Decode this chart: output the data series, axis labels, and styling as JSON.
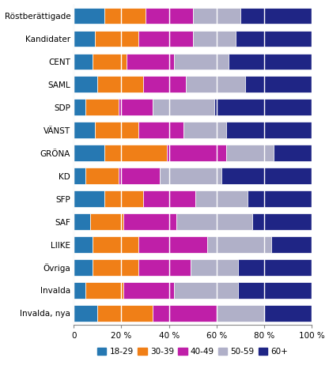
{
  "categories": [
    "Röstberättigade",
    "Kandidater",
    "CENT",
    "SAML",
    "SDP",
    "VÄNST",
    "GRÖNA",
    "KD",
    "SFP",
    "SAF",
    "LIIKE",
    "Övriga",
    "Invalda",
    "Invalda, nya"
  ],
  "segments": {
    "18-29": [
      13,
      9,
      8,
      10,
      5,
      9,
      13,
      5,
      13,
      7,
      8,
      8,
      5,
      10
    ],
    "30-39": [
      17,
      18,
      14,
      19,
      14,
      18,
      26,
      14,
      16,
      14,
      19,
      19,
      16,
      23
    ],
    "40-49": [
      20,
      23,
      20,
      18,
      14,
      19,
      25,
      17,
      22,
      22,
      29,
      22,
      21,
      27
    ],
    "50-59": [
      20,
      18,
      23,
      25,
      26,
      18,
      20,
      26,
      22,
      32,
      27,
      20,
      27,
      20
    ],
    "60+": [
      30,
      32,
      35,
      28,
      41,
      36,
      16,
      38,
      27,
      25,
      17,
      31,
      31,
      20
    ]
  },
  "colors": {
    "18-29": "#2678b2",
    "30-39": "#f07f17",
    "40-49": "#bf1fa8",
    "50-59": "#b0b0c8",
    "60+": "#1f2585"
  },
  "legend_labels": [
    "18-29",
    "30-39",
    "40-49",
    "50-59",
    "60+"
  ],
  "xtick_labels": [
    "0",
    "20 %",
    "40 %",
    "60 %",
    "80 %",
    "100 %"
  ],
  "xtick_values": [
    0,
    20,
    40,
    60,
    80,
    100
  ],
  "background_color": "#ffffff"
}
